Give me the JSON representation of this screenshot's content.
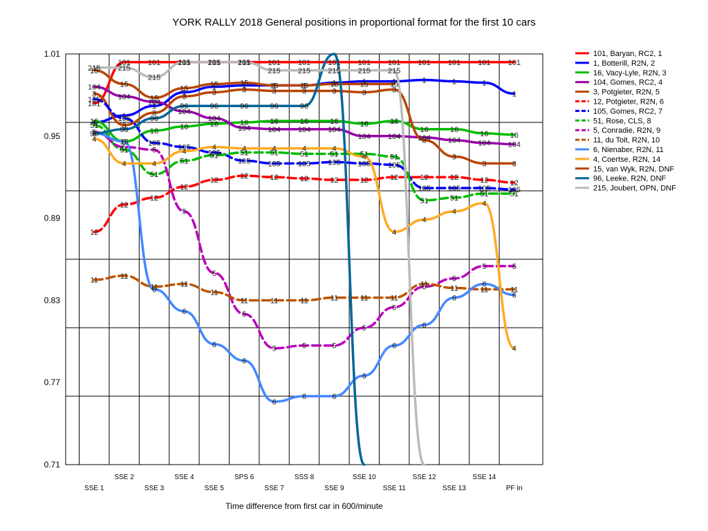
{
  "chart_data": {
    "type": "line",
    "title": "YORK RALLY 2018  General positions in proportional format for the first 10 cars",
    "xlabel": "Time difference from first car in 600/minute",
    "ylabel": "",
    "ylim": [
      0.71,
      1.01
    ],
    "yticks": [
      "1.01",
      "0.95",
      "0.89",
      "0.83",
      "0.77",
      "0.71"
    ],
    "categories": [
      "SSE 1",
      "SSE 2",
      "SSE 3",
      "SSE 4",
      "SSE 5",
      "SPS 6",
      "SSE 7",
      "SSS 8",
      "SSE 9",
      "SSE 10",
      "SSE 11",
      "SSE 12",
      "SSE 13",
      "SSE 14",
      "PF In"
    ],
    "grid": true,
    "legend_position": "right",
    "series": [
      {
        "name": "101, Baryan, RC2, 1",
        "label": "101",
        "color": "#ff0000",
        "dash": false,
        "values": [
          0.974,
          1.004,
          1.004,
          1.004,
          1.004,
          1.004,
          1.004,
          1.004,
          1.004,
          1.004,
          1.004,
          1.004,
          1.004,
          1.004,
          1.004
        ]
      },
      {
        "name": "1, Botterill, R2N, 2",
        "label": "1",
        "color": "#0000ff",
        "dash": false,
        "values": [
          0.96,
          0.965,
          0.972,
          0.982,
          0.986,
          0.987,
          0.987,
          0.987,
          0.989,
          0.99,
          0.99,
          0.991,
          0.99,
          0.989,
          0.981
        ]
      },
      {
        "name": "16, Vacy-Lyle, R2N, 3",
        "label": "16",
        "color": "#00bb00",
        "dash": false,
        "values": [
          0.961,
          0.946,
          0.954,
          0.957,
          0.959,
          0.96,
          0.961,
          0.961,
          0.961,
          0.959,
          0.961,
          0.955,
          0.955,
          0.952,
          0.951
        ]
      },
      {
        "name": "104, Gomes, RC2, 4",
        "label": "104",
        "color": "#9900aa",
        "dash": false,
        "values": [
          0.986,
          0.979,
          0.975,
          0.968,
          0.963,
          0.956,
          0.955,
          0.955,
          0.955,
          0.95,
          0.95,
          0.949,
          0.947,
          0.945,
          0.944
        ]
      },
      {
        "name": "3, Potgieter, R2N, 5",
        "label": "3",
        "color": "#bb4400",
        "dash": false,
        "values": [
          0.981,
          0.958,
          0.967,
          0.979,
          0.982,
          0.984,
          0.983,
          0.983,
          0.983,
          0.982,
          0.984,
          0.947,
          0.935,
          0.93,
          0.93
        ]
      },
      {
        "name": "12, Potgieter, R2N, 6",
        "label": "12",
        "color": "#ff0000",
        "dash": true,
        "values": [
          0.88,
          0.9,
          0.905,
          0.913,
          0.918,
          0.921,
          0.92,
          0.919,
          0.918,
          0.918,
          0.92,
          0.92,
          0.92,
          0.918,
          0.916
        ]
      },
      {
        "name": "105, Gomes, RC2, 7",
        "label": "105",
        "color": "#0000ff",
        "dash": true,
        "values": [
          0.977,
          0.963,
          0.945,
          0.942,
          0.938,
          0.932,
          0.93,
          0.93,
          0.931,
          0.93,
          0.929,
          0.912,
          0.912,
          0.912,
          0.911
        ]
      },
      {
        "name": "51, Rose, CLS, 8",
        "label": "51",
        "color": "#00bb00",
        "dash": true,
        "values": [
          0.958,
          0.94,
          0.922,
          0.932,
          0.936,
          0.938,
          0.938,
          0.937,
          0.937,
          0.937,
          0.935,
          0.903,
          0.905,
          0.908,
          0.908
        ]
      },
      {
        "name": "5, Conradie, R2N, 9",
        "label": "5",
        "color": "#bb00bb",
        "dash": true,
        "values": [
          0.953,
          0.942,
          0.94,
          0.895,
          0.85,
          0.82,
          0.795,
          0.797,
          0.797,
          0.81,
          0.825,
          0.84,
          0.846,
          0.855,
          0.855
        ]
      },
      {
        "name": "11, du Toit, R2N, 10",
        "label": "11",
        "color": "#bb5500",
        "dash": true,
        "values": [
          0.845,
          0.848,
          0.84,
          0.842,
          0.836,
          0.83,
          0.83,
          0.83,
          0.832,
          0.832,
          0.832,
          0.842,
          0.839,
          0.838,
          0.838
        ]
      },
      {
        "name": "6, Nienaber, R2N, 11",
        "label": "6",
        "color": "#4488ff",
        "dash": false,
        "values": [
          0.952,
          0.946,
          0.838,
          0.822,
          0.798,
          0.786,
          0.756,
          0.76,
          0.76,
          0.775,
          0.797,
          0.812,
          0.832,
          0.842,
          0.834
        ]
      },
      {
        "name": "4, Coertse, R2N, 14",
        "label": "4",
        "color": "#ffaa22",
        "dash": false,
        "values": [
          0.948,
          0.93,
          0.93,
          0.939,
          0.942,
          0.941,
          0.941,
          0.941,
          0.941,
          0.935,
          0.88,
          0.889,
          0.895,
          0.901,
          0.795
        ]
      },
      {
        "name": "15, van Wyk, R2N, DNF",
        "label": "15",
        "color": "#bb4400",
        "dash": false,
        "values": [
          0.998,
          0.988,
          0.978,
          0.985,
          0.988,
          0.989,
          0.987,
          0.987,
          0.988,
          0.988,
          0.988,
          null,
          null,
          null,
          null
        ]
      },
      {
        "name": "96, Leeke, R2N, DNF",
        "label": "96",
        "color": "#006699",
        "dash": false,
        "values": [
          0.952,
          0.955,
          0.963,
          0.972,
          0.972,
          0.972,
          0.972,
          0.972,
          1.01,
          0.71,
          null,
          null,
          null,
          null,
          null
        ]
      },
      {
        "name": "215, Joubert, OPN, DNF",
        "label": "215",
        "color": "#bbbbbb",
        "dash": false,
        "values": [
          1.0,
          1.0,
          0.993,
          1.004,
          1.004,
          1.004,
          0.998,
          0.998,
          0.998,
          0.998,
          0.998,
          0.71,
          null,
          null,
          null
        ]
      }
    ]
  }
}
